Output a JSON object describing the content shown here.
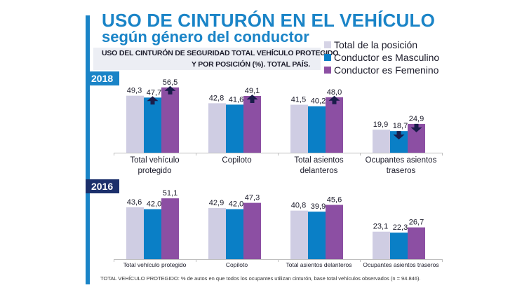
{
  "title": "USO DE CINTURÓN EN EL VEHÍCULO",
  "subtitle": "según género del conductor",
  "chart_subtitle_line1": "USO DEL CINTURÓN DE SEGURIDAD TOTAL VEHÍCULO PROTEGIDO",
  "chart_subtitle_line2": "Y POR POSICIÓN  (%). TOTAL PAÍS.",
  "legend": [
    {
      "label": "Total de la posición",
      "color": "#cfcde3"
    },
    {
      "label": "Conductor es Masculino",
      "color": "#0a7fc6"
    },
    {
      "label": "Conductor es Femenino",
      "color": "#8c4fa3"
    }
  ],
  "footnote": "TOTAL VEHÍCULO PROTEGIDO: % de autos en que todos los ocupantes utilizan cinturón, base total vehículos observados (n = 94.846).",
  "chart_data": [
    {
      "type": "bar",
      "title": "2018",
      "categories": [
        "Total vehículo protegido",
        "Copiloto",
        "Total asientos delanteros",
        "Ocupantes asientos traseros"
      ],
      "category_label_lines": [
        [
          "Total vehículo",
          "protegido"
        ],
        [
          "Copiloto"
        ],
        [
          "Total asientos",
          "delanteros"
        ],
        [
          "Ocupantes asientos",
          "traseros"
        ]
      ],
      "series": [
        {
          "name": "Total de la posición",
          "values": [
            49.3,
            42.8,
            41.5,
            19.9
          ],
          "labels": [
            "49,3",
            "42,8",
            "41,5",
            "19,9"
          ]
        },
        {
          "name": "Conductor es Masculino",
          "values": [
            47.7,
            41.6,
            40.2,
            18.7
          ],
          "labels": [
            "47,7",
            "41,6",
            "40,2",
            "18,7"
          ]
        },
        {
          "name": "Conductor es Femenino",
          "values": [
            56.5,
            49.1,
            48.0,
            24.9
          ],
          "labels": [
            "56,5",
            "49,1",
            "48,0",
            "24,9"
          ]
        }
      ],
      "annotations": [
        {
          "series": "Conductor es Masculino",
          "category": "Total vehículo protegido",
          "arrow": "up"
        },
        {
          "series": "Conductor es Femenino",
          "category": "Total vehículo protegido",
          "arrow": "up"
        },
        {
          "series": "Conductor es Femenino",
          "category": "Copiloto",
          "arrow": "up"
        },
        {
          "series": "Conductor es Femenino",
          "category": "Total asientos delanteros",
          "arrow": "up"
        },
        {
          "series": "Conductor es Masculino",
          "category": "Ocupantes asientos traseros",
          "arrow": "down"
        },
        {
          "series": "Conductor es Femenino",
          "category": "Ocupantes asientos traseros",
          "arrow": "down"
        }
      ],
      "xlabel": "",
      "ylabel": "%",
      "ylim": [
        0,
        60
      ],
      "grid": false
    },
    {
      "type": "bar",
      "title": "2016",
      "categories": [
        "Total vehículo protegido",
        "Copiloto",
        "Total asientos delanteros",
        "Ocupantes asientos traseros"
      ],
      "category_label_lines": [
        [
          "Total vehículo protegido"
        ],
        [
          "Copiloto"
        ],
        [
          "Total asientos delanteros"
        ],
        [
          "Ocupantes asientos traseros"
        ]
      ],
      "series": [
        {
          "name": "Total de la posición",
          "values": [
            43.6,
            42.9,
            40.8,
            23.1
          ],
          "labels": [
            "43,6",
            "42,9",
            "40,8",
            "23,1"
          ]
        },
        {
          "name": "Conductor es Masculino",
          "values": [
            42.0,
            42.0,
            39.9,
            22.3
          ],
          "labels": [
            "42,0",
            "42,0",
            "39,9",
            "22,3"
          ]
        },
        {
          "name": "Conductor es Femenino",
          "values": [
            51.1,
            47.3,
            45.6,
            26.7
          ],
          "labels": [
            "51,1",
            "47,3",
            "45,6",
            "26,7"
          ]
        }
      ],
      "annotations": [],
      "xlabel": "",
      "ylabel": "%",
      "ylim": [
        0,
        60
      ],
      "grid": false
    }
  ]
}
